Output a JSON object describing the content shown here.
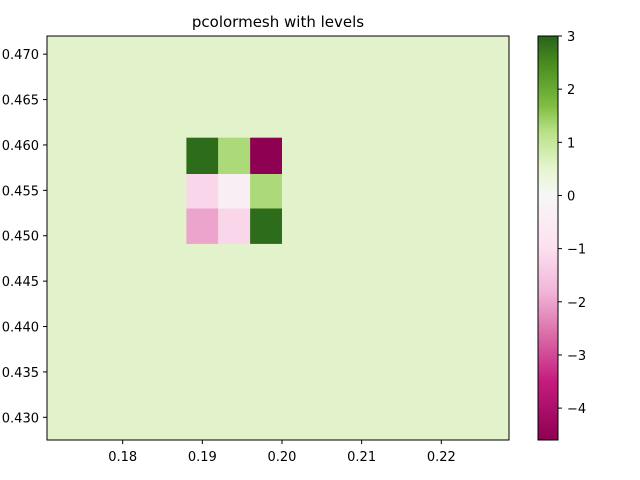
{
  "chart_data": {
    "type": "heatmap",
    "title": "pcolormesh with levels",
    "xlabel": "",
    "ylabel": "",
    "xlim": [
      0.1705,
      0.2285
    ],
    "ylim": [
      0.4275,
      0.472
    ],
    "x_ticks": [
      0.18,
      0.19,
      0.2,
      0.21,
      0.22
    ],
    "x_tick_labels": [
      "0.18",
      "0.19",
      "0.20",
      "0.21",
      "0.22"
    ],
    "y_ticks": [
      0.43,
      0.435,
      0.44,
      0.445,
      0.45,
      0.455,
      0.46,
      0.465,
      0.47
    ],
    "y_tick_labels": [
      "0.430",
      "0.435",
      "0.440",
      "0.445",
      "0.450",
      "0.455",
      "0.460",
      "0.465",
      "0.470"
    ],
    "background_value": 0.0,
    "cells": [
      {
        "x0": 0.188,
        "x1": 0.192,
        "y0": 0.4568,
        "y1": 0.4608,
        "value": 2.9
      },
      {
        "x0": 0.192,
        "x1": 0.196,
        "y0": 0.4568,
        "y1": 0.4608,
        "value": 1.3
      },
      {
        "x0": 0.196,
        "x1": 0.2,
        "y0": 0.4568,
        "y1": 0.4608,
        "value": -4.6
      },
      {
        "x0": 0.188,
        "x1": 0.192,
        "y0": 0.453,
        "y1": 0.4568,
        "value": -1.2
      },
      {
        "x0": 0.192,
        "x1": 0.196,
        "y0": 0.453,
        "y1": 0.4568,
        "value": -0.4
      },
      {
        "x0": 0.196,
        "x1": 0.2,
        "y0": 0.453,
        "y1": 0.4568,
        "value": 1.3
      },
      {
        "x0": 0.188,
        "x1": 0.192,
        "y0": 0.4491,
        "y1": 0.453,
        "value": -2.0
      },
      {
        "x0": 0.192,
        "x1": 0.196,
        "y0": 0.4491,
        "y1": 0.453,
        "value": -1.2
      },
      {
        "x0": 0.196,
        "x1": 0.2,
        "y0": 0.4491,
        "y1": 0.453,
        "value": 2.9
      }
    ],
    "colorbar": {
      "vmin": -4.6,
      "vmax": 3.0,
      "ticks": [
        3,
        2,
        1,
        0,
        -1,
        -2,
        -3,
        -4
      ],
      "tick_labels": [
        "3",
        "2",
        "1",
        "0",
        "−1",
        "−2",
        "−3",
        "−4"
      ],
      "colormap": "PiYG",
      "stops": [
        {
          "value": -4.6,
          "color": "#8e0152"
        },
        {
          "value": -3.5,
          "color": "#c51b7d"
        },
        {
          "value": -2.5,
          "color": "#de77ae"
        },
        {
          "value": -1.8,
          "color": "#f1b6da"
        },
        {
          "value": -1.0,
          "color": "#fde0ef"
        },
        {
          "value": 0.0,
          "color": "#f7f7f7"
        },
        {
          "value": 0.5,
          "color": "#e6f5d0"
        },
        {
          "value": 1.2,
          "color": "#b8e186"
        },
        {
          "value": 1.7,
          "color": "#7fbc41"
        },
        {
          "value": 2.4,
          "color": "#4d9221"
        },
        {
          "value": 3.0,
          "color": "#276419"
        }
      ]
    },
    "background_color": "#e2f2cb"
  }
}
